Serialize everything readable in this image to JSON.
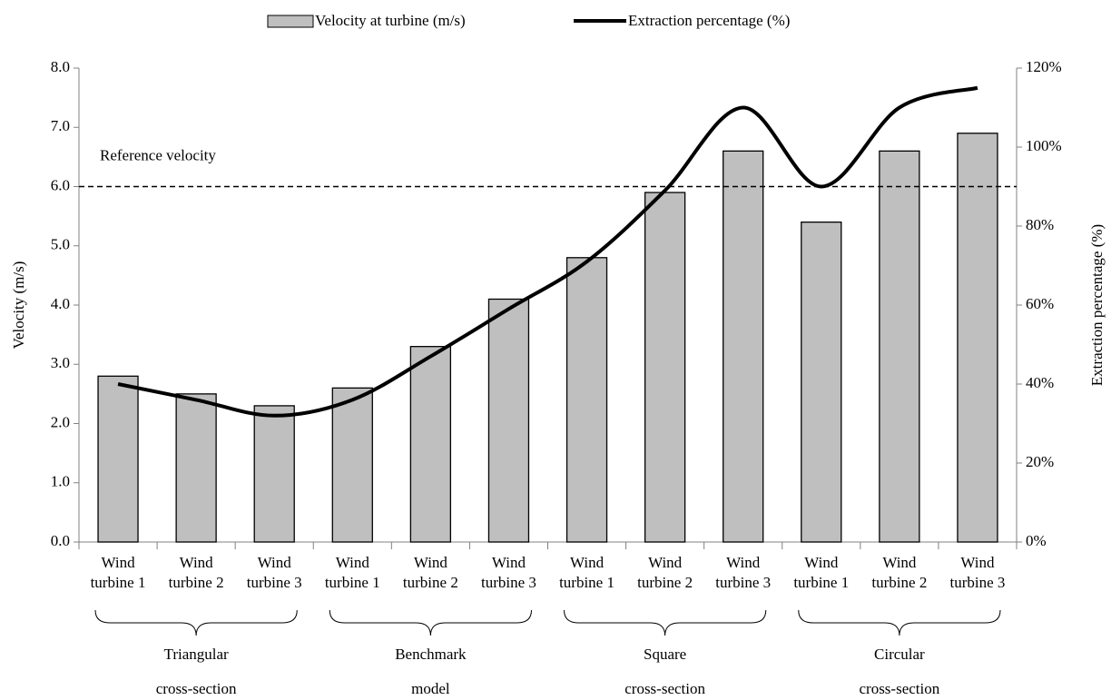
{
  "chart_data": {
    "type": "bar_line",
    "categories": [
      "Wind turbine 1",
      "Wind turbine 2",
      "Wind turbine 3",
      "Wind turbine 1",
      "Wind turbine 2",
      "Wind turbine 3",
      "Wind turbine 1",
      "Wind turbine 2",
      "Wind turbine 3",
      "Wind turbine 1",
      "Wind turbine 2",
      "Wind turbine 3"
    ],
    "groups": [
      [
        "Triangular",
        "cross-section"
      ],
      [
        "Benchmark",
        "model"
      ],
      [
        "Square",
        "cross-section"
      ],
      [
        "Circular",
        "cross-section"
      ]
    ],
    "series": [
      {
        "name": "Velocity at turbine (m/s)",
        "type": "bar",
        "color": "#bfbfbf",
        "values": [
          2.8,
          2.5,
          2.3,
          2.6,
          3.3,
          4.1,
          4.8,
          5.9,
          6.6,
          5.4,
          6.6,
          6.9
        ]
      },
      {
        "name": "Extraction percentage (%)",
        "type": "line",
        "axis": "y2",
        "color": "#000000",
        "values": [
          40,
          36,
          32,
          36,
          47,
          59,
          71,
          89,
          110,
          90,
          110,
          115
        ]
      }
    ],
    "ylabel": "Velocity (m/s)",
    "y2label": "Extraction percentage (%)",
    "ylim": [
      0,
      8
    ],
    "yticks": [
      {
        "value": 0,
        "label": "0.0"
      },
      {
        "value": 1,
        "label": "1.0"
      },
      {
        "value": 2,
        "label": "2.0"
      },
      {
        "value": 3,
        "label": "3.0"
      },
      {
        "value": 4,
        "label": "4.0"
      },
      {
        "value": 5,
        "label": "5.0"
      },
      {
        "value": 6,
        "label": "6.0"
      },
      {
        "value": 7,
        "label": "7.0"
      },
      {
        "value": 8,
        "label": "8.0"
      }
    ],
    "y2lim": [
      0,
      120
    ],
    "y2ticks": [
      {
        "value": 0,
        "label": "0%"
      },
      {
        "value": 20,
        "label": "20%"
      },
      {
        "value": 40,
        "label": "40%"
      },
      {
        "value": 60,
        "label": "60%"
      },
      {
        "value": 80,
        "label": "80%"
      },
      {
        "value": 100,
        "label": "100%"
      },
      {
        "value": 120,
        "label": "120%"
      }
    ],
    "reference": {
      "value": 6,
      "label": "Reference velocity"
    },
    "legend": "top",
    "grid": false
  }
}
